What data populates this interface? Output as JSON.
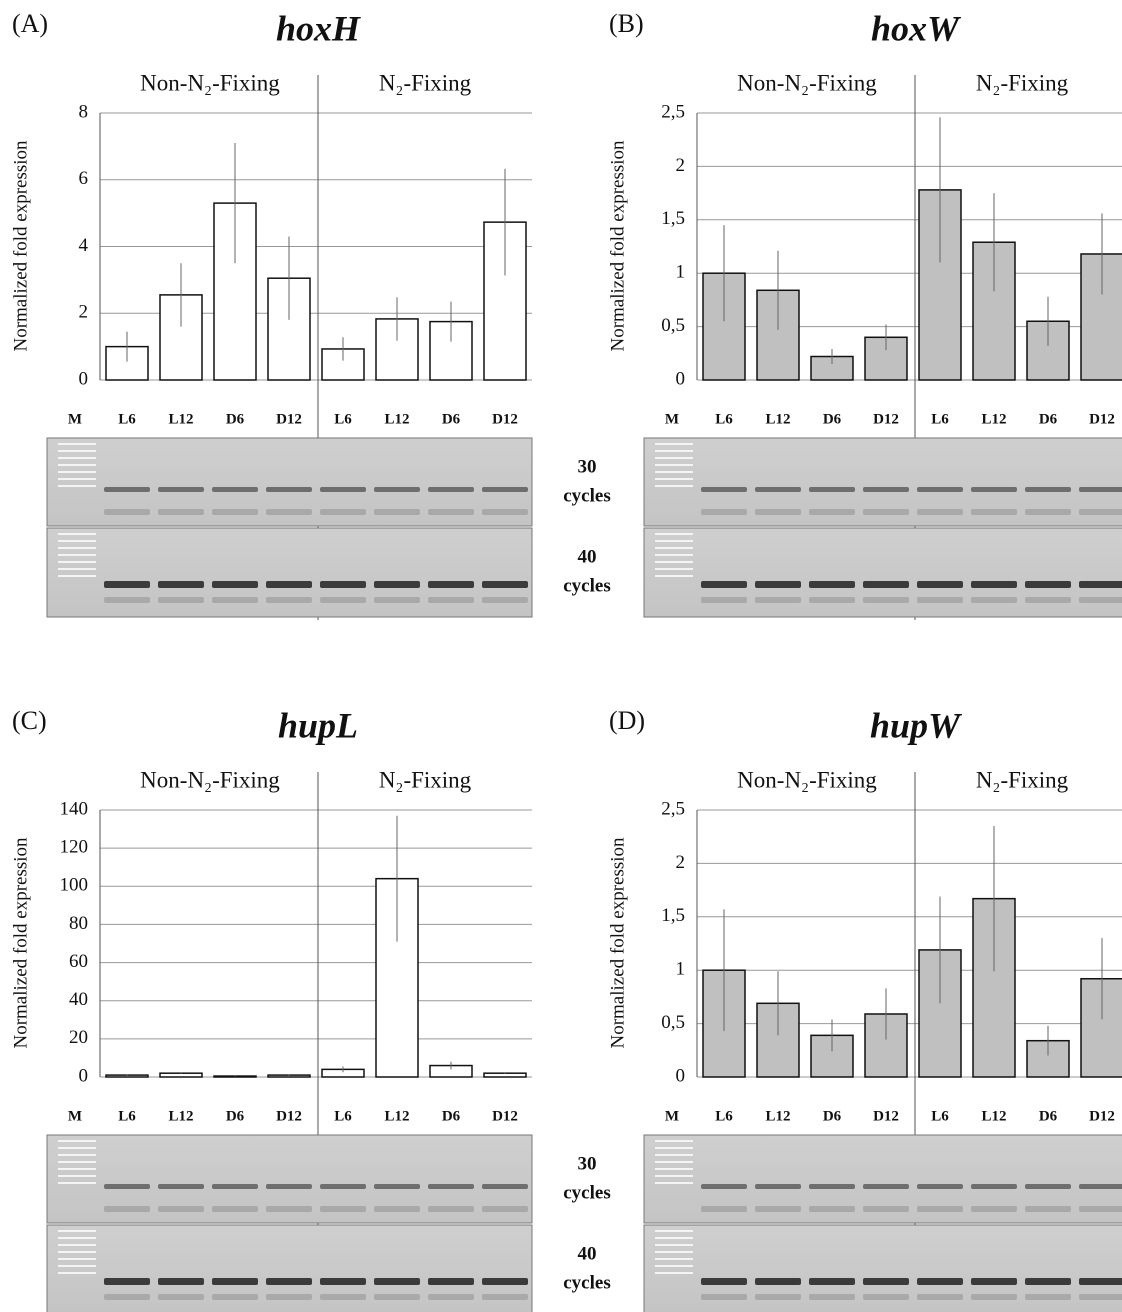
{
  "chart_data": [
    {
      "type": "bar",
      "panel": "(A)",
      "title": "hoxH",
      "ylabel": "Normalized fold expression",
      "groups": [
        "Non-N₂-Fixing",
        "N₂-Fixing"
      ],
      "marker": "M",
      "categories": [
        "L6",
        "L12",
        "D6",
        "D12",
        "L6",
        "L12",
        "D6",
        "D12"
      ],
      "values": [
        1.0,
        2.55,
        5.3,
        3.05,
        0.93,
        1.83,
        1.75,
        4.73
      ],
      "errors": [
        0.45,
        0.95,
        1.8,
        1.25,
        0.35,
        0.65,
        0.6,
        1.6
      ],
      "color": "#ffffff",
      "ylim": [
        0,
        8
      ],
      "yticks": [
        0,
        2,
        4,
        6,
        8
      ],
      "grid": true,
      "gel_labels": [
        [
          "30",
          "cycles"
        ],
        [
          "40",
          "cycles"
        ]
      ]
    },
    {
      "type": "bar",
      "panel": "(B)",
      "title": "hoxW",
      "ylabel": "Normalized fold expression",
      "groups": [
        "Non-N₂-Fixing",
        "N₂-Fixing"
      ],
      "marker": "M",
      "categories": [
        "L6",
        "L12",
        "D6",
        "D12",
        "L6",
        "L12",
        "D6",
        "D12"
      ],
      "values": [
        1.0,
        0.84,
        0.22,
        0.4,
        1.78,
        1.29,
        0.55,
        1.18
      ],
      "errors": [
        0.45,
        0.37,
        0.07,
        0.12,
        0.68,
        0.46,
        0.23,
        0.38
      ],
      "color": "#c0c0c0",
      "ylim": [
        0,
        2.5
      ],
      "yticks": [
        0,
        {
          "value": 0.5,
          "label": "0,5"
        },
        1,
        {
          "value": 1.5,
          "label": "1,5"
        },
        2,
        {
          "value": 2.5,
          "label": "2,5"
        }
      ],
      "grid": true
    },
    {
      "type": "bar",
      "panel": "(C)",
      "title": "hupL",
      "ylabel": "Normalized fold expression",
      "groups": [
        "Non-N₂-Fixing",
        "N₂-Fixing"
      ],
      "marker": "M",
      "categories": [
        "L6",
        "L12",
        "D6",
        "D12",
        "L6",
        "L12",
        "D6",
        "D12"
      ],
      "values": [
        1,
        2,
        0.5,
        1,
        4,
        104,
        6,
        2
      ],
      "errors": [
        0.3,
        0.5,
        0.2,
        0.3,
        1.5,
        33,
        2,
        0.5
      ],
      "color": "#ffffff",
      "ylim": [
        0,
        140
      ],
      "yticks": [
        0,
        20,
        40,
        60,
        80,
        100,
        120,
        140
      ],
      "grid": true,
      "gel_labels": [
        [
          "30",
          "cycles"
        ],
        [
          "40",
          "cycles"
        ]
      ]
    },
    {
      "type": "bar",
      "panel": "(D)",
      "title": "hupW",
      "ylabel": "Normalized fold expression",
      "groups": [
        "Non-N₂-Fixing",
        "N₂-Fixing"
      ],
      "marker": "M",
      "categories": [
        "L6",
        "L12",
        "D6",
        "D12",
        "L6",
        "L12",
        "D6",
        "D12"
      ],
      "values": [
        1.0,
        0.69,
        0.39,
        0.59,
        1.19,
        1.67,
        0.34,
        0.92
      ],
      "errors": [
        0.57,
        0.3,
        0.15,
        0.24,
        0.5,
        0.68,
        0.14,
        0.38
      ],
      "color": "#c0c0c0",
      "ylim": [
        0,
        2.5
      ],
      "yticks": [
        0,
        {
          "value": 0.5,
          "label": "0,5"
        },
        1,
        {
          "value": 1.5,
          "label": "1,5"
        },
        2,
        {
          "value": 2.5,
          "label": "2,5"
        }
      ],
      "grid": true
    }
  ]
}
